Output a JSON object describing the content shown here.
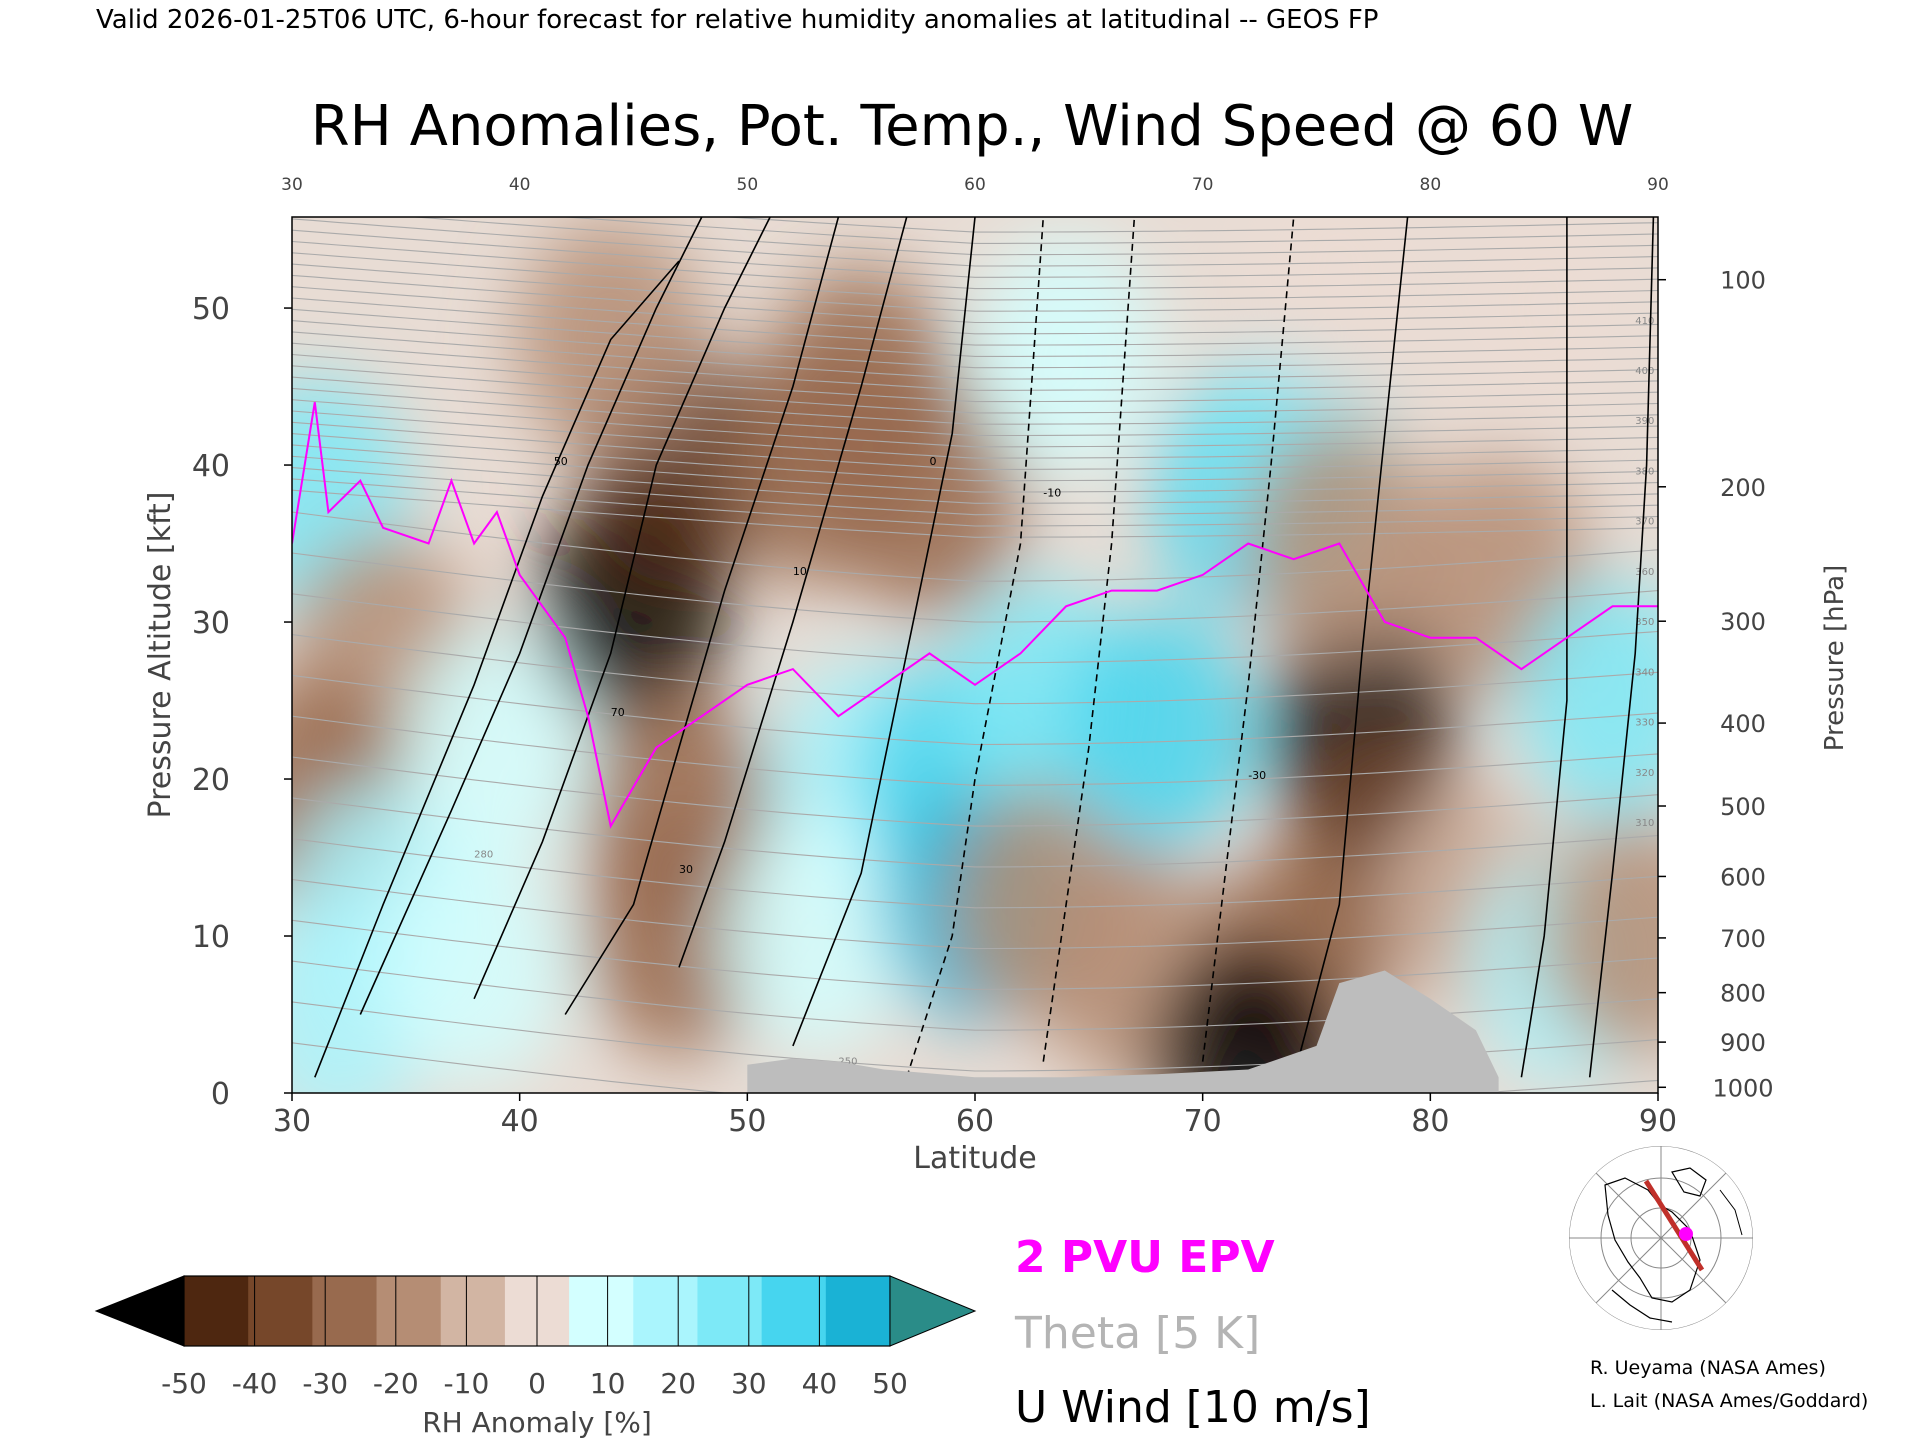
{
  "header": {
    "valid_line": "Valid 2026-01-25T06 UTC, 6-hour forecast for relative humidity anomalies at latitudinal -- GEOS FP",
    "title": "RH Anomalies, Pot. Temp., Wind Speed @ 60 W"
  },
  "chart_data": {
    "type": "heatmap",
    "title": "RH Anomalies, Pot. Temp., Wind Speed @ 60 W",
    "xlabel": "Latitude",
    "ylabel_left": "Pressure Altitude [kft]",
    "ylabel_right": "Pressure [hPa]",
    "xlim": [
      30,
      90
    ],
    "ylim_kft": [
      0,
      55.8
    ],
    "x_ticks": [
      "30",
      "40",
      "50",
      "60",
      "70",
      "80",
      "90"
    ],
    "x_ticks_top": [
      "30",
      "40",
      "50",
      "60",
      "70",
      "80",
      "90"
    ],
    "y_ticks_left": [
      {
        "value": 0,
        "label": "0"
      },
      {
        "value": 10,
        "label": "10"
      },
      {
        "value": 20,
        "label": "20"
      },
      {
        "value": 30,
        "label": "30"
      },
      {
        "value": 40,
        "label": "40"
      },
      {
        "value": 50,
        "label": "50"
      }
    ],
    "pressure_ticks": [
      {
        "hpa": 100,
        "label": "100"
      },
      {
        "hpa": 200,
        "label": "200"
      },
      {
        "hpa": 300,
        "label": "300"
      },
      {
        "hpa": 400,
        "label": "400"
      },
      {
        "hpa": 500,
        "label": "500"
      },
      {
        "hpa": 600,
        "label": "600"
      },
      {
        "hpa": 700,
        "label": "700"
      },
      {
        "hpa": 800,
        "label": "800"
      },
      {
        "hpa": 900,
        "label": "900"
      },
      {
        "hpa": 1000,
        "label": "1000"
      }
    ],
    "rh_anomaly_colorbar": {
      "label": "RH Anomaly [%]",
      "tick_labels": [
        "-50",
        "-40",
        "-30",
        "-20",
        "-10",
        "0",
        "10",
        "20",
        "30",
        "40",
        "50"
      ],
      "colors": [
        "#1f0f06",
        "#4e2710",
        "#76472a",
        "#986a4e",
        "#b58d74",
        "#d2b5a3",
        "#ecdcd4",
        "#d3ffff",
        "#aaf5fd",
        "#7de9f7",
        "#46d5ef",
        "#1ab2d5",
        "#0e7e9c"
      ],
      "under_color": "#000000",
      "over_color": "#2a8c88"
    },
    "rh_anomaly_field": [
      {
        "lat": 31,
        "kft": 38,
        "value": 35
      },
      {
        "lat": 34,
        "kft": 28,
        "value": -15
      },
      {
        "lat": 31,
        "kft": 19,
        "value": -25
      },
      {
        "lat": 34,
        "kft": 12,
        "value": 20
      },
      {
        "lat": 32,
        "kft": 5,
        "value": 25
      },
      {
        "lat": 38,
        "kft": 8,
        "value": 10
      },
      {
        "lat": 39,
        "kft": 22,
        "value": 15
      },
      {
        "lat": 45,
        "kft": 31,
        "value": -55
      },
      {
        "lat": 47,
        "kft": 40,
        "value": -45
      },
      {
        "lat": 44,
        "kft": 48,
        "value": -15
      },
      {
        "lat": 47,
        "kft": 18,
        "value": -25
      },
      {
        "lat": 47,
        "kft": 10,
        "value": -30
      },
      {
        "lat": 55,
        "kft": 45,
        "value": -25
      },
      {
        "lat": 53,
        "kft": 40,
        "value": -30
      },
      {
        "lat": 58,
        "kft": 38,
        "value": -25
      },
      {
        "lat": 55,
        "kft": 20,
        "value": 20
      },
      {
        "lat": 53,
        "kft": 10,
        "value": 15
      },
      {
        "lat": 59,
        "kft": 20,
        "value": 40
      },
      {
        "lat": 60,
        "kft": 12,
        "value": 50
      },
      {
        "lat": 63,
        "kft": 25,
        "value": 30
      },
      {
        "lat": 63,
        "kft": 12,
        "value": -15
      },
      {
        "lat": 67,
        "kft": 8,
        "value": -20
      },
      {
        "lat": 68,
        "kft": 23,
        "value": 40
      },
      {
        "lat": 72,
        "kft": 38,
        "value": 45
      },
      {
        "lat": 74,
        "kft": 40,
        "value": 35
      },
      {
        "lat": 64,
        "kft": 47,
        "value": 15
      },
      {
        "lat": 77,
        "kft": 23,
        "value": -55
      },
      {
        "lat": 78,
        "kft": 15,
        "value": -35
      },
      {
        "lat": 76,
        "kft": 35,
        "value": -20
      },
      {
        "lat": 74,
        "kft": 8,
        "value": -25
      },
      {
        "lat": 72,
        "kft": 2,
        "value": -55
      },
      {
        "lat": 83,
        "kft": 33,
        "value": -20
      },
      {
        "lat": 82,
        "kft": 12,
        "value": -10
      },
      {
        "lat": 88,
        "kft": 25,
        "value": 35
      },
      {
        "lat": 86,
        "kft": 8,
        "value": 20
      },
      {
        "lat": 89,
        "kft": 10,
        "value": -15
      },
      {
        "lat": 85,
        "kft": 50,
        "value": 0
      },
      {
        "lat": 76,
        "kft": 52,
        "value": 5
      }
    ],
    "epv_2pvu": {
      "label": "2 PVU EPV",
      "color": "#ff00ff",
      "points": [
        {
          "lat": 30,
          "kft": 35
        },
        {
          "lat": 31,
          "kft": 44
        },
        {
          "lat": 31.6,
          "kft": 37
        },
        {
          "lat": 33,
          "kft": 39
        },
        {
          "lat": 34,
          "kft": 36
        },
        {
          "lat": 36,
          "kft": 35
        },
        {
          "lat": 37,
          "kft": 39
        },
        {
          "lat": 38,
          "kft": 35
        },
        {
          "lat": 39,
          "kft": 37
        },
        {
          "lat": 40,
          "kft": 33
        },
        {
          "lat": 42,
          "kft": 29
        },
        {
          "lat": 43,
          "kft": 24
        },
        {
          "lat": 44,
          "kft": 17
        },
        {
          "lat": 46,
          "kft": 22
        },
        {
          "lat": 48,
          "kft": 24
        },
        {
          "lat": 50,
          "kft": 26
        },
        {
          "lat": 52,
          "kft": 27
        },
        {
          "lat": 54,
          "kft": 24
        },
        {
          "lat": 56,
          "kft": 26
        },
        {
          "lat": 58,
          "kft": 28
        },
        {
          "lat": 60,
          "kft": 26
        },
        {
          "lat": 62,
          "kft": 28
        },
        {
          "lat": 64,
          "kft": 31
        },
        {
          "lat": 66,
          "kft": 32
        },
        {
          "lat": 68,
          "kft": 32
        },
        {
          "lat": 70,
          "kft": 33
        },
        {
          "lat": 72,
          "kft": 35
        },
        {
          "lat": 74,
          "kft": 34
        },
        {
          "lat": 76,
          "kft": 35
        },
        {
          "lat": 78,
          "kft": 30
        },
        {
          "lat": 80,
          "kft": 29
        },
        {
          "lat": 82,
          "kft": 29
        },
        {
          "lat": 84,
          "kft": 27
        },
        {
          "lat": 86,
          "kft": 29
        },
        {
          "lat": 88,
          "kft": 31
        },
        {
          "lat": 90,
          "kft": 31
        }
      ]
    },
    "theta_5k": {
      "label": "Theta [5 K]",
      "color": "#aaaaaa",
      "visible_labels": [
        "250",
        "280",
        "310",
        "320",
        "330",
        "340",
        "350",
        "360",
        "370",
        "380",
        "390",
        "400",
        "410"
      ]
    },
    "u_wind_10ms": {
      "label": "U Wind [10 m/s]",
      "color": "#000000",
      "visible_labels": [
        "50",
        "70",
        "30",
        "10",
        "0",
        "-10",
        "-30"
      ]
    },
    "terrain_color": "#bdbdbd",
    "terrain": [
      {
        "lat": 50,
        "kft": 1.8
      },
      {
        "lat": 52,
        "kft": 2.2
      },
      {
        "lat": 54,
        "kft": 2
      },
      {
        "lat": 56,
        "kft": 1.5
      },
      {
        "lat": 60,
        "kft": 1
      },
      {
        "lat": 64,
        "kft": 1
      },
      {
        "lat": 68,
        "kft": 1.2
      },
      {
        "lat": 72,
        "kft": 1.5
      },
      {
        "lat": 75,
        "kft": 3
      },
      {
        "lat": 76,
        "kft": 7
      },
      {
        "lat": 78,
        "kft": 7.8
      },
      {
        "lat": 80,
        "kft": 6
      },
      {
        "lat": 82,
        "kft": 4
      },
      {
        "lat": 83,
        "kft": 1
      }
    ]
  },
  "inset_map": {
    "section_line_color": "#c0302a",
    "marker_color": "#ff00ff"
  },
  "credits": {
    "line1": "R. Ueyama (NASA Ames)",
    "line2": "L. Lait (NASA Ames/Goddard)"
  }
}
